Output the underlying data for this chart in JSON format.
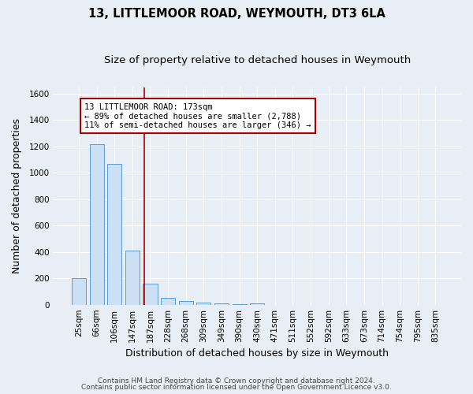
{
  "title": "13, LITTLEMOOR ROAD, WEYMOUTH, DT3 6LA",
  "subtitle": "Size of property relative to detached houses in Weymouth",
  "xlabel": "Distribution of detached houses by size in Weymouth",
  "ylabel": "Number of detached properties",
  "bar_labels": [
    "25sqm",
    "66sqm",
    "106sqm",
    "147sqm",
    "187sqm",
    "228sqm",
    "268sqm",
    "309sqm",
    "349sqm",
    "390sqm",
    "430sqm",
    "471sqm",
    "511sqm",
    "552sqm",
    "592sqm",
    "633sqm",
    "673sqm",
    "714sqm",
    "754sqm",
    "795sqm",
    "835sqm"
  ],
  "bar_values": [
    200,
    1220,
    1065,
    410,
    162,
    50,
    25,
    18,
    10,
    5,
    10,
    0,
    0,
    0,
    0,
    0,
    0,
    0,
    0,
    0,
    0
  ],
  "bar_color": "#cce0f5",
  "bar_edge_color": "#5b9bd5",
  "vline_color": "#aa0000",
  "vline_x": 3.65,
  "ylim": [
    0,
    1650
  ],
  "yticks": [
    0,
    200,
    400,
    600,
    800,
    1000,
    1200,
    1400,
    1600
  ],
  "annotation_text": "13 LITTLEMOOR ROAD: 173sqm\n← 89% of detached houses are smaller (2,788)\n11% of semi-detached houses are larger (346) →",
  "annotation_box_facecolor": "#ffffff",
  "annotation_box_edgecolor": "#aa0000",
  "footer_line1": "Contains HM Land Registry data © Crown copyright and database right 2024.",
  "footer_line2": "Contains public sector information licensed under the Open Government Licence v3.0.",
  "bg_color": "#e8eef5",
  "plot_bg_color": "#e8eef5",
  "title_fontsize": 10.5,
  "subtitle_fontsize": 9.5,
  "axis_label_fontsize": 9,
  "tick_fontsize": 7.5,
  "annotation_fontsize": 7.5,
  "footer_fontsize": 6.5
}
